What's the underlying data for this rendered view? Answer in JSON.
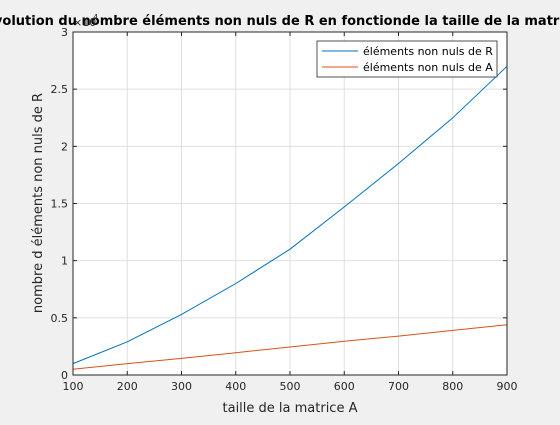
{
  "chart_data": {
    "type": "line",
    "title": "évolution du nombre éléments non nuls de R en fonctionde la taille de la matrice A",
    "xlabel": "taille de la matrice A",
    "ylabel": "nombre d éléments non nuls de R",
    "y_exponent_label": "×10",
    "y_exponent": "4",
    "xlim": [
      100,
      900
    ],
    "ylim": [
      0,
      30000
    ],
    "xticks": [
      100,
      200,
      300,
      400,
      500,
      600,
      700,
      800,
      900
    ],
    "yticks": [
      0,
      5000,
      10000,
      15000,
      20000,
      25000,
      30000
    ],
    "ytick_labels": [
      "0",
      "0.5",
      "1",
      "1.5",
      "2",
      "2.5",
      "3"
    ],
    "grid": true,
    "legend_position": "top-right",
    "series": [
      {
        "name": "éléments non nuls de R",
        "color": "#0072bd",
        "x": [
          100,
          200,
          300,
          400,
          500,
          600,
          700,
          800,
          900
        ],
        "y": [
          1000,
          2900,
          5300,
          8000,
          11000,
          14700,
          18500,
          22500,
          27000
        ]
      },
      {
        "name": "éléments non nuls de A",
        "color": "#d95319",
        "x": [
          100,
          200,
          300,
          400,
          500,
          600,
          700,
          800,
          900
        ],
        "y": [
          500,
          1000,
          1450,
          1950,
          2450,
          2950,
          3400,
          3900,
          4400
        ]
      }
    ]
  }
}
